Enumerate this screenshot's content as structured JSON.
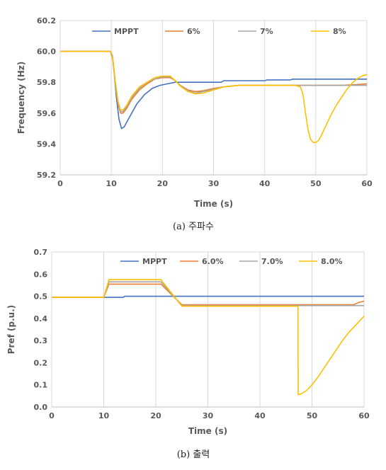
{
  "chart_data": [
    {
      "type": "line",
      "caption": "(a) 주파수",
      "xlabel": "Time (s)",
      "ylabel": "Frequency (Hz)",
      "xlim": [
        0,
        60
      ],
      "ylim": [
        59.2,
        60.2
      ],
      "x_ticks": [
        "0",
        "10",
        "20",
        "30",
        "40",
        "50",
        "60"
      ],
      "y_ticks": [
        "59.2",
        "59.4",
        "59.6",
        "59.8",
        "60.0",
        "60.2"
      ],
      "y_tick_values": [
        59.2,
        59.4,
        59.6,
        59.8,
        60.0,
        60.2
      ],
      "x_tick_values": [
        0,
        10,
        20,
        30,
        40,
        50,
        60
      ],
      "grid": "vertical",
      "legend_position": "top",
      "series": [
        {
          "name": "MPPT",
          "color": "#4472C4",
          "x": [
            0,
            9.8,
            10.2,
            10.6,
            11.0,
            11.5,
            12.0,
            12.5,
            13.5,
            15,
            16.5,
            18,
            19.5,
            21,
            22.5,
            24,
            26,
            30,
            31.5,
            32,
            40,
            40.5,
            45,
            45.5,
            60
          ],
          "y": [
            60.0,
            60.0,
            59.97,
            59.85,
            59.7,
            59.56,
            59.5,
            59.51,
            59.57,
            59.66,
            59.72,
            59.76,
            59.78,
            59.79,
            59.8,
            59.8,
            59.8,
            59.8,
            59.8,
            59.81,
            59.81,
            59.815,
            59.815,
            59.82,
            59.82
          ]
        },
        {
          "name": "6%",
          "color": "#ED7D31",
          "x": [
            0,
            9.8,
            10.3,
            10.8,
            11.3,
            11.8,
            12.3,
            13,
            14,
            15.5,
            17,
            18.5,
            20,
            21.5,
            22.5,
            23.5,
            25,
            26.5,
            28,
            30,
            32,
            35,
            40,
            45,
            50,
            55,
            58,
            60
          ],
          "y": [
            60.0,
            60.0,
            59.95,
            59.8,
            59.66,
            59.6,
            59.6,
            59.63,
            59.69,
            59.75,
            59.79,
            59.82,
            59.83,
            59.83,
            59.81,
            59.78,
            59.75,
            59.74,
            59.745,
            59.76,
            59.77,
            59.78,
            59.78,
            59.78,
            59.78,
            59.78,
            59.785,
            59.79
          ]
        },
        {
          "name": "7%",
          "color": "#A5A5A5",
          "x": [
            0,
            9.8,
            10.3,
            10.8,
            11.3,
            11.8,
            12.3,
            13,
            14,
            15.5,
            17,
            18.5,
            20,
            21.5,
            22.5,
            23.5,
            25,
            26.5,
            28,
            30,
            32,
            35,
            40,
            45,
            50,
            55,
            60
          ],
          "y": [
            60.0,
            60.0,
            59.95,
            59.8,
            59.67,
            59.61,
            59.61,
            59.64,
            59.7,
            59.76,
            59.8,
            59.82,
            59.835,
            59.835,
            59.81,
            59.78,
            59.745,
            59.73,
            59.74,
            59.755,
            59.77,
            59.78,
            59.78,
            59.78,
            59.78,
            59.78,
            59.78
          ]
        },
        {
          "name": "8%",
          "color": "#FFC000",
          "x": [
            0,
            9.8,
            10.3,
            10.8,
            11.3,
            11.8,
            12.3,
            13,
            14,
            15.5,
            17,
            18.5,
            20,
            21.5,
            22.5,
            23.5,
            25,
            26.5,
            28,
            30,
            32,
            35,
            40,
            44,
            46,
            47,
            47.5,
            48,
            48.5,
            49,
            49.5,
            50,
            50.5,
            51,
            52,
            53,
            54,
            55,
            56,
            57,
            58,
            59,
            60
          ],
          "y": [
            60.0,
            60.0,
            59.95,
            59.8,
            59.68,
            59.62,
            59.62,
            59.65,
            59.71,
            59.77,
            59.8,
            59.83,
            59.84,
            59.84,
            59.81,
            59.775,
            59.74,
            59.725,
            59.73,
            59.75,
            59.77,
            59.78,
            59.78,
            59.78,
            59.78,
            59.77,
            59.72,
            59.6,
            59.49,
            59.43,
            59.41,
            59.41,
            59.42,
            59.45,
            59.52,
            59.59,
            59.65,
            59.7,
            59.75,
            59.79,
            59.82,
            59.84,
            59.85
          ]
        }
      ]
    },
    {
      "type": "line",
      "caption": "(b) 출력",
      "xlabel": "Time (s)",
      "ylabel": "Pref (p.u.)",
      "xlim": [
        0,
        60
      ],
      "ylim": [
        0,
        0.7
      ],
      "x_ticks": [
        "0",
        "10",
        "20",
        "30",
        "40",
        "50",
        "60"
      ],
      "y_ticks": [
        "0.0",
        "0.1",
        "0.2",
        "0.3",
        "0.4",
        "0.5",
        "0.6",
        "0.7"
      ],
      "y_tick_values": [
        0,
        0.1,
        0.2,
        0.3,
        0.4,
        0.5,
        0.6,
        0.7
      ],
      "x_tick_values": [
        0,
        10,
        20,
        30,
        40,
        50,
        60
      ],
      "grid": "vertical",
      "legend_position": "top",
      "series": [
        {
          "name": "MPPT",
          "color": "#4472C4",
          "x": [
            0,
            10,
            13.8,
            14,
            60
          ],
          "y": [
            0.495,
            0.495,
            0.495,
            0.5,
            0.5
          ]
        },
        {
          "name": "6.0%",
          "color": "#ED7D31",
          "x": [
            0,
            10,
            11,
            21,
            25,
            58,
            59,
            60
          ],
          "y": [
            0.495,
            0.495,
            0.555,
            0.555,
            0.462,
            0.462,
            0.472,
            0.478
          ]
        },
        {
          "name": "7.0%",
          "color": "#A5A5A5",
          "x": [
            0,
            10,
            11,
            21,
            25,
            60
          ],
          "y": [
            0.495,
            0.495,
            0.565,
            0.565,
            0.458,
            0.458
          ]
        },
        {
          "name": "8.0%",
          "color": "#FFC000",
          "x": [
            0,
            10,
            11,
            21,
            25,
            47.3,
            47.35,
            48,
            49,
            50,
            51,
            52,
            53,
            54,
            55,
            56,
            57,
            58,
            59,
            60
          ],
          "y": [
            0.495,
            0.495,
            0.575,
            0.575,
            0.455,
            0.455,
            0.055,
            0.06,
            0.075,
            0.1,
            0.13,
            0.165,
            0.2,
            0.235,
            0.27,
            0.305,
            0.335,
            0.36,
            0.385,
            0.41
          ]
        }
      ]
    }
  ]
}
